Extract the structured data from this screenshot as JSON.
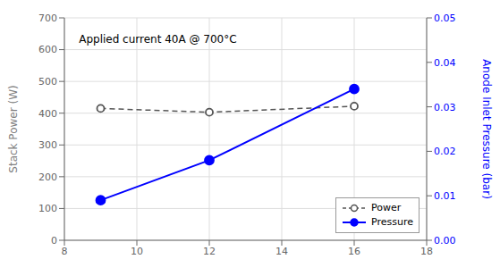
{
  "chart_data": {
    "type": "line",
    "x": [
      9,
      12,
      16
    ],
    "xlim": [
      8,
      18
    ],
    "xticks": [
      8,
      10,
      12,
      14,
      16,
      18
    ],
    "ylim": [
      0,
      700
    ],
    "yticks": [
      0,
      100,
      200,
      300,
      400,
      500,
      600,
      700
    ],
    "y2lim": [
      0,
      0.05
    ],
    "y2ticks": [
      {
        "value": 0,
        "label": "0.00"
      },
      0.01,
      0.02,
      0.03,
      0.04,
      0.05
    ],
    "ylabel": "Stack Power (W)",
    "y2label": "Anode Inlet Pressure (bar)",
    "annotation": "Applied current 40A @ 700°C",
    "grid": true,
    "legend": "lower right",
    "series": [
      {
        "name": "Power",
        "color": "#555555",
        "values": [
          415,
          403,
          422
        ],
        "line_style": "dashed",
        "marker": "open_circle"
      },
      {
        "name": "Pressure",
        "color": "blue",
        "values": [
          0.009,
          0.018,
          0.034
        ],
        "line_style": "solid",
        "marker": "circle",
        "axis": "y2"
      }
    ]
  }
}
